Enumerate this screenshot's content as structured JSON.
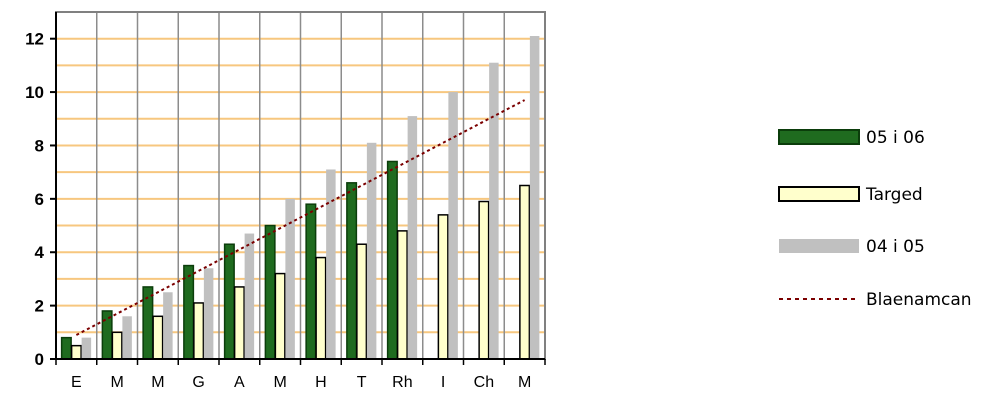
{
  "chart_data": {
    "type": "bar",
    "categories": [
      "E",
      "M",
      "M",
      "G",
      "A",
      "M",
      "H",
      "T",
      "Rh",
      "I",
      "Ch",
      "M"
    ],
    "series": [
      {
        "name": "05 i 06",
        "kind": "bar",
        "color": "#1f6b1f",
        "edge": "#0b3d0b",
        "values": [
          0.8,
          1.8,
          2.7,
          3.5,
          4.3,
          5.0,
          5.8,
          6.6,
          7.4,
          null,
          null,
          null
        ]
      },
      {
        "name": "Targed",
        "kind": "bar",
        "color": "#ffffcc",
        "edge": "#000000",
        "values": [
          0.5,
          1.0,
          1.6,
          2.1,
          2.7,
          3.2,
          3.8,
          4.3,
          4.8,
          5.4,
          5.9,
          6.5
        ]
      },
      {
        "name": "04 i 05",
        "kind": "bar",
        "color": "#c0c0c0",
        "edge": "#c0c0c0",
        "values": [
          0.8,
          1.6,
          2.5,
          3.4,
          4.7,
          6.0,
          7.1,
          8.1,
          9.1,
          10.0,
          11.1,
          12.1
        ]
      },
      {
        "name": "Blaenamcan",
        "kind": "line",
        "color": "#7b0000",
        "style": "dotted",
        "values": [
          0.9,
          1.7,
          2.5,
          3.3,
          4.1,
          4.9,
          5.7,
          6.5,
          7.3,
          8.1,
          8.9,
          9.7
        ]
      }
    ],
    "y_ticks": [
      "0",
      "2",
      "4",
      "6",
      "8",
      "10",
      "12"
    ],
    "ylim": [
      0,
      13
    ],
    "grid": {
      "vertical": true,
      "horizontal_color": "#f7c77f"
    },
    "legend_position": "right"
  }
}
